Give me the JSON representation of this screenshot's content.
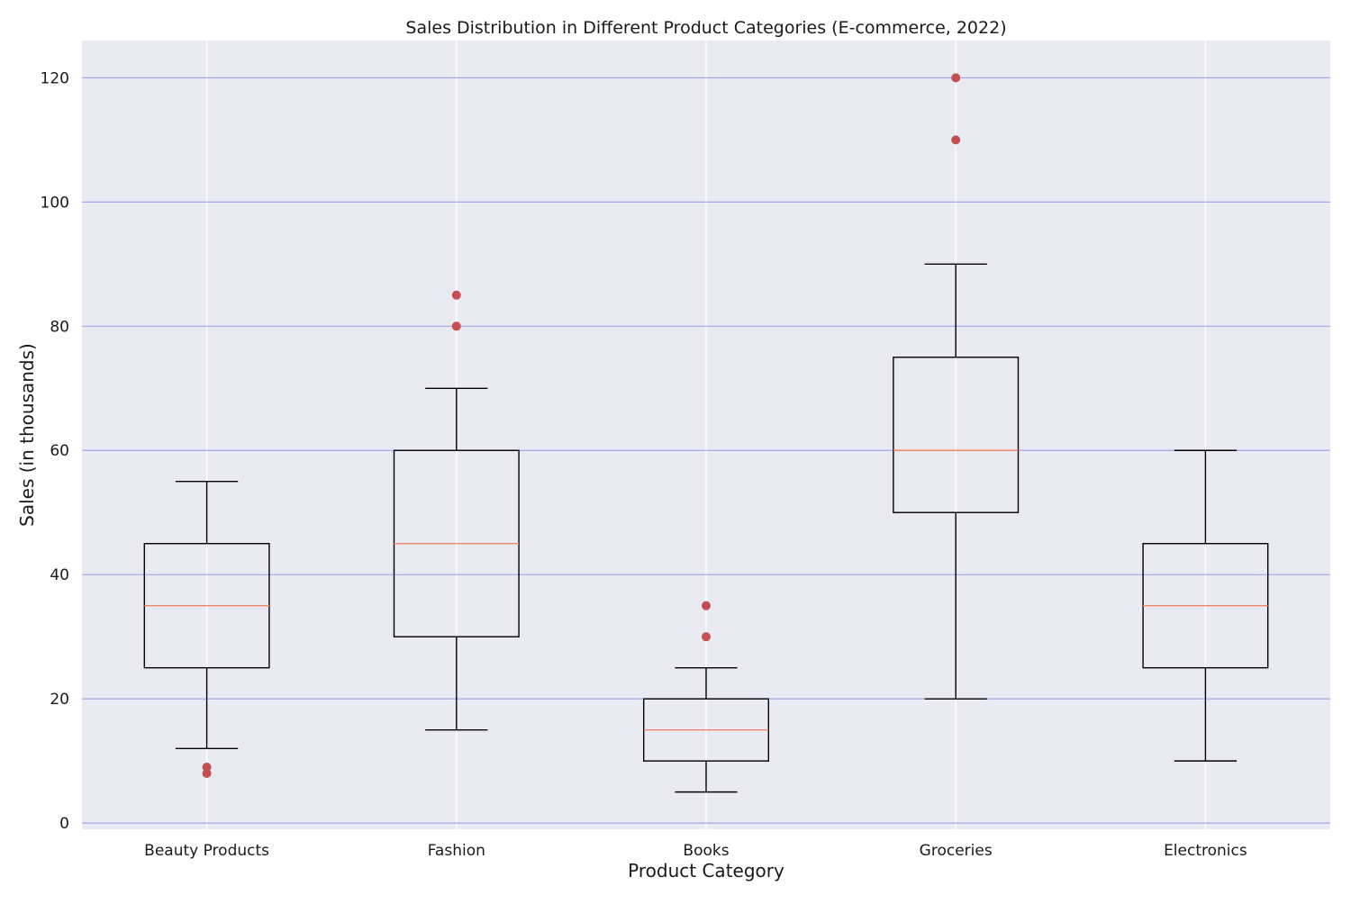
{
  "chart_data": {
    "type": "box",
    "title": "Sales Distribution in Different Product Categories (E-commerce, 2022)",
    "xlabel": "Product Category",
    "ylabel": "Sales (in thousands)",
    "ylim": [
      -1,
      126
    ],
    "yticks": [
      0,
      20,
      40,
      60,
      80,
      100,
      120
    ],
    "categories": [
      "Beauty Products",
      "Fashion",
      "Books",
      "Groceries",
      "Electronics"
    ],
    "boxes": [
      {
        "category": "Beauty Products",
        "whisker_low": 12,
        "q1": 25,
        "median": 35,
        "q3": 45,
        "whisker_high": 55,
        "outliers": [
          8,
          9
        ]
      },
      {
        "category": "Fashion",
        "whisker_low": 15,
        "q1": 30,
        "median": 45,
        "q3": 60,
        "whisker_high": 70,
        "outliers": [
          80,
          85
        ]
      },
      {
        "category": "Books",
        "whisker_low": 5,
        "q1": 10,
        "median": 15,
        "q3": 20,
        "whisker_high": 25,
        "outliers": [
          30,
          35
        ]
      },
      {
        "category": "Groceries",
        "whisker_low": 20,
        "q1": 50,
        "median": 60,
        "q3": 75,
        "whisker_high": 90,
        "outliers": [
          110,
          120
        ]
      },
      {
        "category": "Electronics",
        "whisker_low": 10,
        "q1": 25,
        "median": 35,
        "q3": 45,
        "whisker_high": 60,
        "outliers": []
      }
    ],
    "grid": {
      "y": true,
      "x": true
    },
    "colors": {
      "plot_background": "#eaeaf2",
      "y_grid": "#a6a6ee",
      "x_grid": "#ffffff",
      "box_line": "#000000",
      "median": "#ee8866",
      "outlier": "#c44e52"
    }
  }
}
